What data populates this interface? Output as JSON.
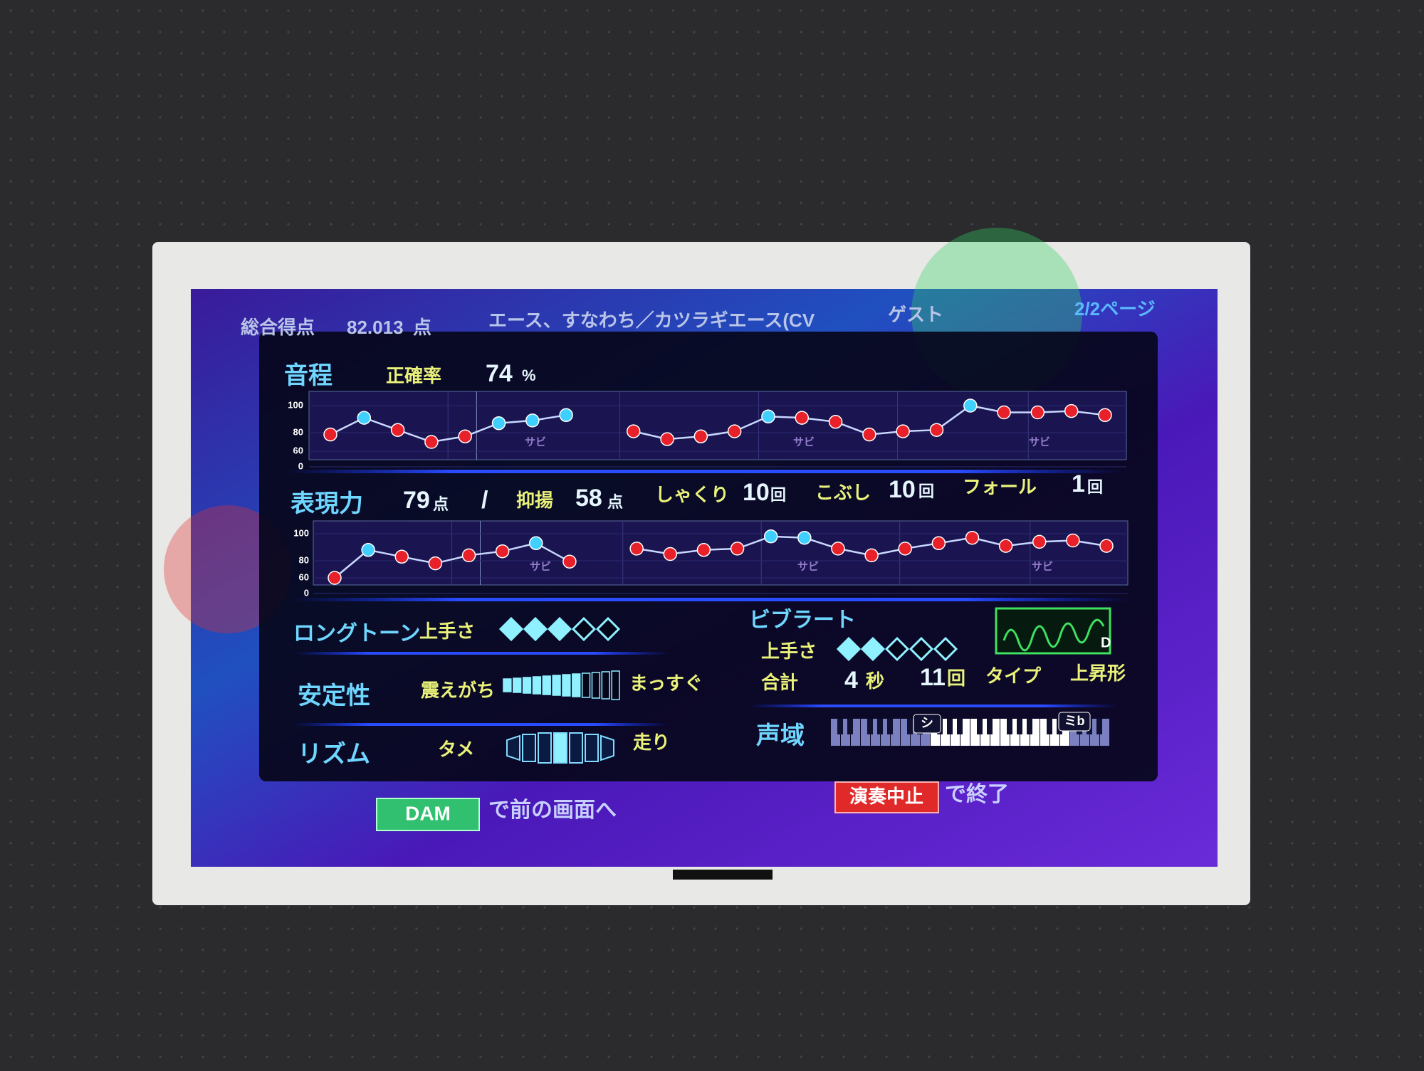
{
  "header": {
    "total_label": "総合得点",
    "total_score": "82.013",
    "total_unit": "点",
    "song": "エース、すなわち／カツラギエース(CV",
    "player": "ゲスト",
    "page": "2/2ページ"
  },
  "pitch": {
    "title": "音程",
    "accuracy_label": "正確率",
    "accuracy": 74,
    "accuracy_unit": "%",
    "chart": {
      "yticks": [
        100,
        80,
        60,
        0
      ],
      "chorus_label": "サビ",
      "values": [
        78,
        91,
        82,
        70,
        76,
        87,
        89,
        93,
        null,
        81,
        73,
        76,
        81,
        92,
        91,
        88,
        78,
        81,
        82,
        100,
        95,
        95,
        96,
        93
      ],
      "colors": [
        "#e8202a",
        "#3fd0ff",
        "#e8202a",
        "#e8202a",
        "#e8202a",
        "#3fd0ff",
        "#3fd0ff",
        "#3fd0ff",
        null,
        "#e8202a",
        "#e8202a",
        "#e8202a",
        "#e8202a",
        "#3fd0ff",
        "#e8202a",
        "#e8202a",
        "#e8202a",
        "#e8202a",
        "#e8202a",
        "#3fd0ff",
        "#e8202a",
        "#e8202a",
        "#e8202a",
        "#e8202a"
      ]
    }
  },
  "expression": {
    "title": "表現力",
    "score": 79,
    "score_unit": "点",
    "separator": "/",
    "intonation_label": "抑揚",
    "intonation": 58,
    "intonation_unit": "点",
    "shakuri_label": "しゃくり",
    "shakuri": 10,
    "shakuri_unit": "回",
    "kobushi_label": "こぶし",
    "kobushi": 10,
    "kobushi_unit": "回",
    "fall_label": "フォール",
    "fall": 1,
    "fall_unit": "回",
    "chart": {
      "yticks": [
        100,
        80,
        60,
        0
      ],
      "chorus_label": "サビ",
      "values": [
        60,
        88,
        83,
        77,
        84,
        87,
        93,
        79,
        null,
        89,
        85,
        88,
        89,
        98,
        97,
        89,
        84,
        89,
        93,
        97,
        91,
        94,
        95,
        91
      ],
      "colors": [
        "#e8202a",
        "#3fd0ff",
        "#e8202a",
        "#e8202a",
        "#e8202a",
        "#e8202a",
        "#3fd0ff",
        "#e8202a",
        null,
        "#e8202a",
        "#e8202a",
        "#e8202a",
        "#e8202a",
        "#3fd0ff",
        "#3fd0ff",
        "#e8202a",
        "#e8202a",
        "#e8202a",
        "#e8202a",
        "#e8202a",
        "#e8202a",
        "#e8202a",
        "#e8202a",
        "#e8202a"
      ]
    }
  },
  "longtone": {
    "title": "ロングトーン",
    "skill_label": "上手さ",
    "rating": {
      "filled": 3,
      "total": 5
    }
  },
  "stability": {
    "title": "安定性",
    "left_label": "震えがち",
    "right_label": "まっすぐ",
    "meter": {
      "filled": 8,
      "segments": 12
    }
  },
  "rhythm": {
    "title": "リズム",
    "left_label": "タメ",
    "right_label": "走り"
  },
  "vibrato": {
    "title": "ビブラート",
    "skill_label": "上手さ",
    "rating": {
      "filled": 2,
      "total": 5
    },
    "total_label": "合計",
    "seconds": 4,
    "seconds_unit": "秒",
    "count": 11,
    "count_unit": "回",
    "type_label": "タイプ",
    "type": "上昇形",
    "type_icon": "D"
  },
  "range": {
    "title": "声域",
    "low": "シ",
    "high": "ミb"
  },
  "footer": {
    "back_button": "DAM",
    "back_text": "で前の画面へ",
    "stop_button": "演奏中止",
    "stop_text": "で終了"
  }
}
